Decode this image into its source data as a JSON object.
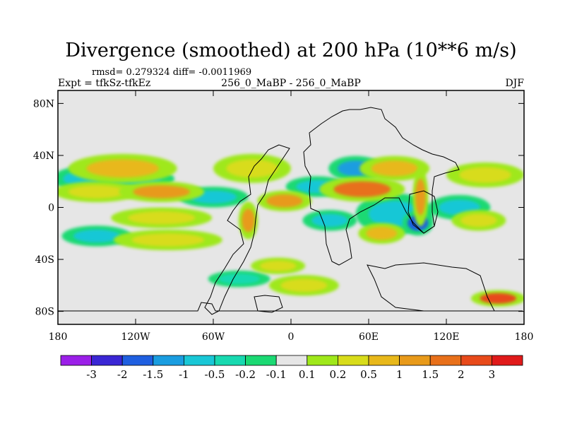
{
  "chart_data": {
    "type": "heatmap",
    "title": "Divergence (smoothed) at 200 hPa (10**6 m/s)",
    "stats": "rmsd= 0.279324  diff= -0.0011969",
    "left_label": "Expt = tfkSz-tfkEz",
    "center_label": "256_0_MaBP - 256_0_MaBP",
    "right_label": "DJF",
    "xlim": [
      -180,
      180
    ],
    "ylim": [
      -90,
      90
    ],
    "x_ticks": [
      {
        "value": -180,
        "label": "180"
      },
      {
        "value": -120,
        "label": "120W"
      },
      {
        "value": -60,
        "label": "60W"
      },
      {
        "value": 0,
        "label": "0"
      },
      {
        "value": 60,
        "label": "60E"
      },
      {
        "value": 120,
        "label": "120E"
      },
      {
        "value": 180,
        "label": "180"
      }
    ],
    "y_ticks": [
      {
        "value": 80,
        "label": "80N"
      },
      {
        "value": 40,
        "label": "40N"
      },
      {
        "value": 0,
        "label": "0"
      },
      {
        "value": -40,
        "label": "40S"
      },
      {
        "value": -80,
        "label": "80S"
      }
    ],
    "colorbar": {
      "colors": [
        "#9b1fe8",
        "#3a26d4",
        "#1f5fe0",
        "#1a9de0",
        "#19c7d6",
        "#18d9b0",
        "#1bd973",
        "#e6e6e6",
        "#9fe81a",
        "#d8dc1a",
        "#e8b81a",
        "#e89a1a",
        "#e8701a",
        "#e84a1a",
        "#e01a1a"
      ],
      "boundaries": [
        "-3",
        "-2",
        "-1.5",
        "-1",
        "-0.5",
        "-0.2",
        "-0.1",
        "0.1",
        "0.2",
        "0.5",
        "1",
        "1.5",
        "2",
        "3"
      ]
    },
    "blobs": [
      {
        "lon": -130,
        "lat": 30,
        "rx": 28,
        "ry": 7,
        "level": 10
      },
      {
        "lon": -150,
        "lat": 12,
        "rx": 22,
        "ry": 5,
        "level": 9
      },
      {
        "lon": -100,
        "lat": 12,
        "rx": 22,
        "ry": 5,
        "level": 11
      },
      {
        "lon": -100,
        "lat": -8,
        "rx": 26,
        "ry": 5,
        "level": 9
      },
      {
        "lon": -30,
        "lat": 30,
        "rx": 20,
        "ry": 7,
        "level": 9
      },
      {
        "lon": -5,
        "lat": 5,
        "rx": 14,
        "ry": 5,
        "level": 11
      },
      {
        "lon": -33,
        "lat": -10,
        "rx": 5,
        "ry": 9,
        "level": 11
      },
      {
        "lon": 55,
        "lat": 14,
        "rx": 22,
        "ry": 6,
        "level": 12
      },
      {
        "lon": 80,
        "lat": 30,
        "rx": 18,
        "ry": 6,
        "level": 10
      },
      {
        "lon": 100,
        "lat": 8,
        "rx": 4,
        "ry": 14,
        "level": 11
      },
      {
        "lon": 150,
        "lat": 25,
        "rx": 20,
        "ry": 6,
        "level": 9
      },
      {
        "lon": -95,
        "lat": -25,
        "rx": 28,
        "ry": 5,
        "level": 9
      },
      {
        "lon": 70,
        "lat": -20,
        "rx": 12,
        "ry": 5,
        "level": 10
      },
      {
        "lon": 145,
        "lat": -10,
        "rx": 14,
        "ry": 5,
        "level": 9
      },
      {
        "lon": 10,
        "lat": -60,
        "rx": 18,
        "ry": 5,
        "level": 9
      },
      {
        "lon": 160,
        "lat": -70,
        "rx": 14,
        "ry": 4,
        "level": 13
      },
      {
        "lon": -10,
        "lat": -45,
        "rx": 14,
        "ry": 4,
        "level": 9
      }
    ],
    "neg_blobs": [
      {
        "lon": -160,
        "lat": 22,
        "rx": 16,
        "ry": 6,
        "level": 4
      },
      {
        "lon": -120,
        "lat": 22,
        "rx": 20,
        "ry": 5,
        "level": 4
      },
      {
        "lon": -150,
        "lat": -22,
        "rx": 18,
        "ry": 5,
        "level": 4
      },
      {
        "lon": -60,
        "lat": 8,
        "rx": 18,
        "ry": 5,
        "level": 4
      },
      {
        "lon": 20,
        "lat": 16,
        "rx": 16,
        "ry": 5,
        "level": 4
      },
      {
        "lon": 50,
        "lat": 30,
        "rx": 14,
        "ry": 6,
        "level": 3
      },
      {
        "lon": 80,
        "lat": -5,
        "rx": 20,
        "ry": 10,
        "level": 4
      },
      {
        "lon": 98,
        "lat": -12,
        "rx": 8,
        "ry": 6,
        "level": 2
      },
      {
        "lon": 130,
        "lat": 0,
        "rx": 16,
        "ry": 6,
        "level": 4
      },
      {
        "lon": 30,
        "lat": -10,
        "rx": 14,
        "ry": 5,
        "level": 4
      },
      {
        "lon": -40,
        "lat": -55,
        "rx": 16,
        "ry": 4,
        "level": 5
      }
    ]
  }
}
